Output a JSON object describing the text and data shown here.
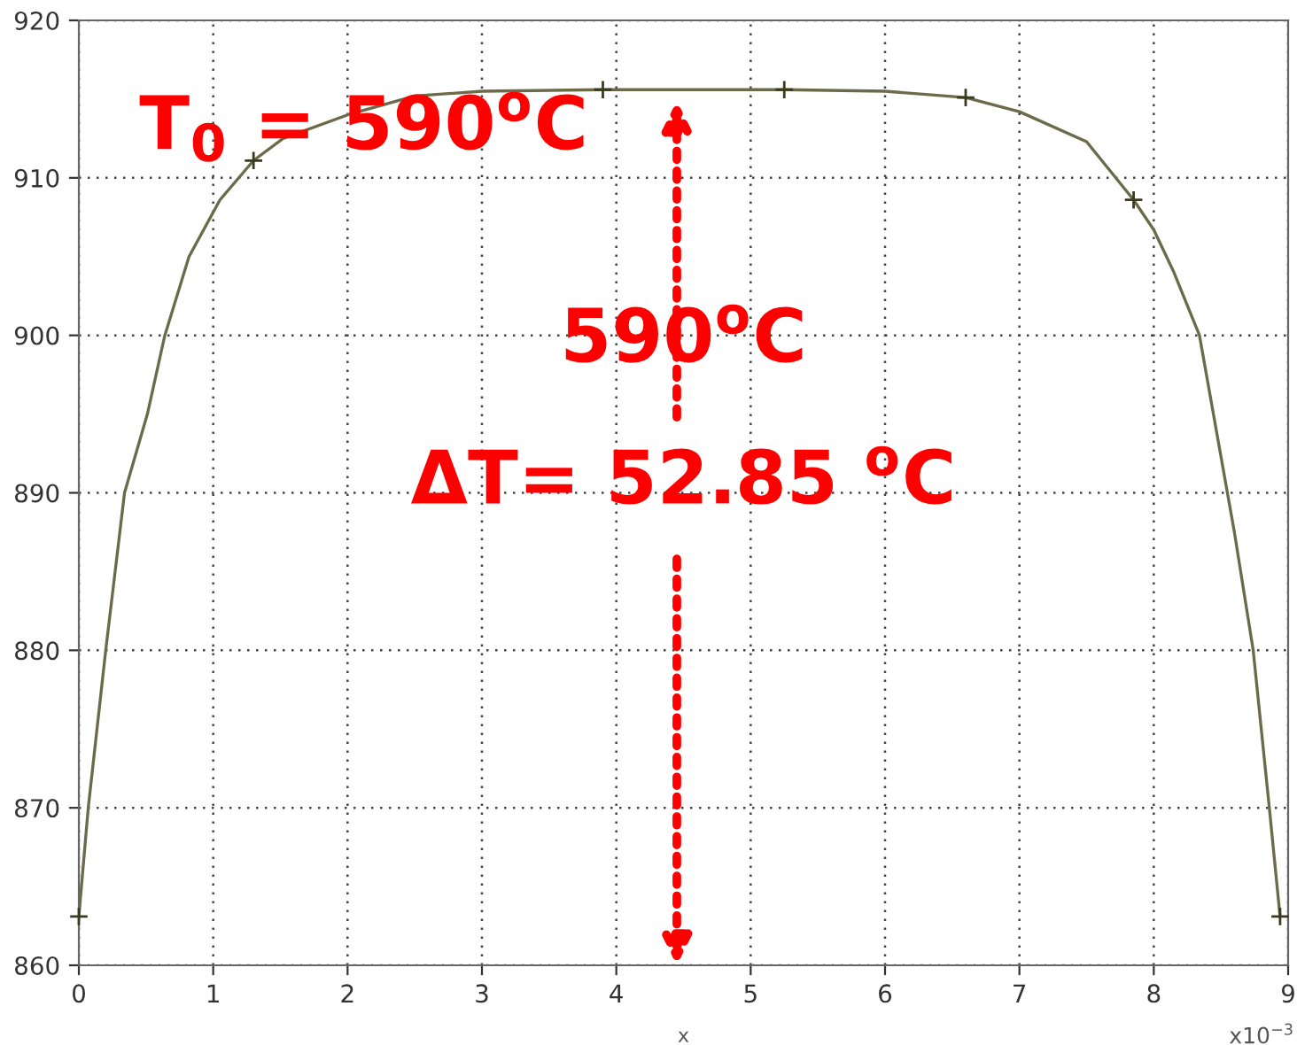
{
  "chart_data": {
    "type": "line",
    "xlabel": "x",
    "xlim": [
      0,
      9
    ],
    "ylim": [
      860,
      920
    ],
    "xticks": [
      0,
      1,
      2,
      3,
      4,
      5,
      6,
      7,
      8,
      9
    ],
    "yticks": [
      860,
      870,
      880,
      890,
      900,
      910,
      920
    ],
    "grid": true,
    "series": [
      {
        "color": "#6b6b4a",
        "marker": "none",
        "line_style": "solid",
        "x": [
          0,
          0.07,
          0.2,
          0.34,
          0.51,
          0.64,
          0.82,
          1.05,
          1.3,
          1.52,
          2.0,
          2.5,
          3.0,
          3.9,
          5.25,
          6.0,
          6.6,
          7.0,
          7.5,
          7.85,
          8.0,
          8.15,
          8.34,
          8.6,
          8.74,
          8.86,
          8.94
        ],
        "values": [
          863.1,
          870,
          880,
          890,
          895,
          900,
          905,
          908.6,
          911.1,
          912.5,
          914,
          915.2,
          915.5,
          915.6,
          915.6,
          915.5,
          915.1,
          914.2,
          912.3,
          908.6,
          906.7,
          904,
          900,
          887.5,
          880,
          870,
          863.1
        ]
      },
      {
        "type": "scatter",
        "color": "#3a3a20",
        "marker": "cross",
        "x": [
          0,
          1.3,
          3.9,
          5.25,
          6.6,
          7.85,
          8.94
        ],
        "values": [
          863.1,
          911.1,
          915.6,
          915.6,
          915.1,
          908.6,
          863.1
        ]
      }
    ],
    "annotations": [
      "x10$^{−3}$",
      "T$_{0}$ = 590$^{o}$C",
      "590$^{o}$C",
      "ΔT= 52.85 $^{o}$C"
    ]
  }
}
